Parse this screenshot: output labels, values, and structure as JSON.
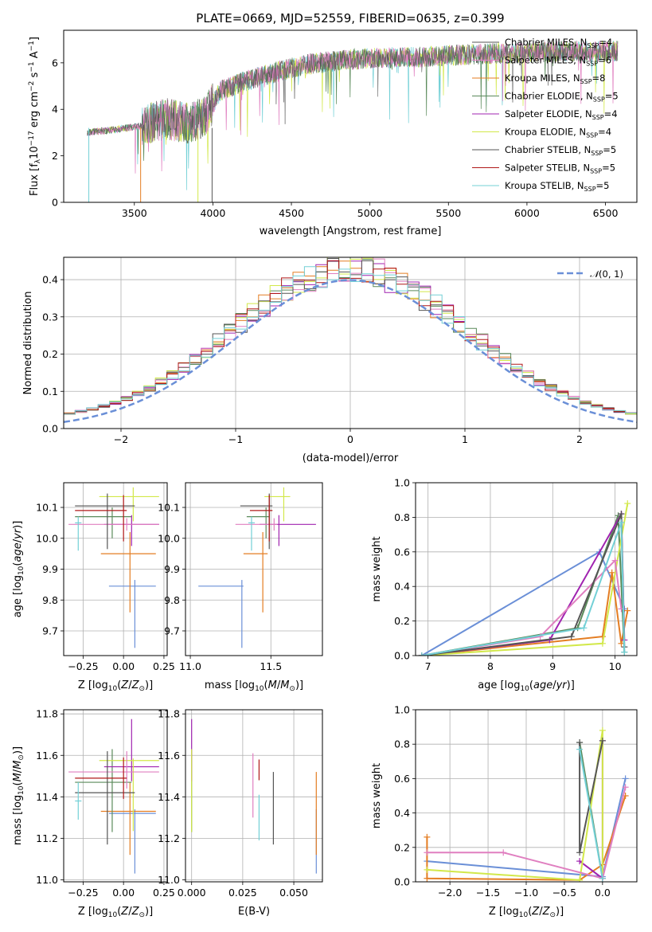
{
  "title": "PLATE=0669, MJD=52559, FIBERID=0635, z=0.399",
  "colors": [
    "#6a8fd7",
    "#e47d22",
    "#5a8a5a",
    "#a023b0",
    "#d2e84a",
    "#e07fc0",
    "#555555",
    "#b01818",
    "#73d0d6"
  ],
  "legend_models": [
    {
      "label": "Chabrier MILES, N",
      "sub": "SSP",
      "val": "=4",
      "color": "#555555"
    },
    {
      "label": "Salpeter MILES, N",
      "sub": "SSP",
      "val": "=6",
      "color": "#e07fc0"
    },
    {
      "label": "Kroupa MILES, N",
      "sub": "SSP",
      "val": "=8",
      "color": "#e47d22"
    },
    {
      "label": "Chabrier ELODIE, N",
      "sub": "SSP",
      "val": "=5",
      "color": "#5a8a5a"
    },
    {
      "label": "Salpeter ELODIE, N",
      "sub": "SSP",
      "val": "=4",
      "color": "#a023b0"
    },
    {
      "label": "Kroupa ELODIE, N",
      "sub": "SSP",
      "val": "=4",
      "color": "#d2e84a"
    },
    {
      "label": "Chabrier STELIB, N",
      "sub": "SSP",
      "val": "=5",
      "color": "#555555"
    },
    {
      "label": "Salpeter STELIB, N",
      "sub": "SSP",
      "val": "=5",
      "color": "#b01818"
    },
    {
      "label": "Kroupa STELIB, N",
      "sub": "SSP",
      "val": "=5",
      "color": "#73d0d6"
    }
  ],
  "chart_data": [
    {
      "panel": "spectrum",
      "type": "line",
      "xlabel": "wavelength [Angstrom, rest frame]",
      "ylabel_main": "Flux [f",
      "ylabel_sub": "λ",
      "ylabel_rest": "10",
      "ylabel_exp1": "−17",
      "ylabel_unit": " erg cm",
      "ylabel_exp2": "−2",
      "ylabel_s": " s",
      "ylabel_exp3": "−1",
      "ylabel_A": " A",
      "ylabel_exp4": "−1",
      "ylabel_close": "]",
      "xlim": [
        3050,
        6700
      ],
      "ylim": [
        0,
        7.4
      ],
      "xticks": [
        3500,
        4000,
        4500,
        5000,
        5500,
        6000,
        6500
      ],
      "yticks": [
        0,
        2,
        4,
        6
      ],
      "grid": false,
      "legend_position": "top-right",
      "approx_continuum": [
        {
          "x": 3200,
          "y": 3.0
        },
        {
          "x": 3400,
          "y": 3.15
        },
        {
          "x": 3550,
          "y": 3.3
        },
        {
          "x": 3700,
          "y": 3.6
        },
        {
          "x": 3850,
          "y": 3.4
        },
        {
          "x": 3950,
          "y": 3.7
        },
        {
          "x": 4050,
          "y": 4.8
        },
        {
          "x": 4200,
          "y": 5.2
        },
        {
          "x": 4400,
          "y": 5.6
        },
        {
          "x": 4600,
          "y": 5.95
        },
        {
          "x": 4800,
          "y": 6.1
        },
        {
          "x": 5000,
          "y": 6.2
        },
        {
          "x": 5300,
          "y": 6.25
        },
        {
          "x": 5600,
          "y": 6.35
        },
        {
          "x": 6000,
          "y": 6.45
        },
        {
          "x": 6300,
          "y": 6.5
        },
        {
          "x": 6580,
          "y": 6.5
        }
      ]
    },
    {
      "panel": "residuals",
      "type": "step-histogram",
      "xlabel": "(data-model)/error",
      "ylabel": "Normed distribution",
      "xlim": [
        -2.5,
        2.5
      ],
      "ylim": [
        0,
        0.46
      ],
      "xticks": [
        -2,
        -1,
        0,
        1,
        2
      ],
      "xticklabels": [
        "−2",
        "−1",
        "0",
        "1",
        "2"
      ],
      "yticks": [
        0.0,
        0.1,
        0.2,
        0.3,
        0.4
      ],
      "yticklabels": [
        "0.0",
        "0.1",
        "0.2",
        "0.3",
        "0.4"
      ],
      "grid": true,
      "bin_width": 0.1,
      "legend_label": "N(0,1)",
      "legend_position": "top-right",
      "reference_curve": {
        "type": "normal",
        "mean": 0,
        "sigma": 1,
        "color": "#6a8fd7"
      }
    },
    {
      "panel": "age_vs_Z",
      "type": "errorbar",
      "xlabel": "Z [log10(Z/Z⊙)]",
      "ylabel": "age [log10(age/yr)]",
      "xlim": [
        -0.37,
        0.27
      ],
      "ylim": [
        9.62,
        10.18
      ],
      "xticks": [
        -0.25,
        0.0,
        0.25
      ],
      "xticklabels": [
        "−0.25",
        "0.00",
        "0.25"
      ],
      "yticks": [
        9.7,
        9.8,
        9.9,
        10.0,
        10.1
      ],
      "yticklabels": [
        "9.7",
        "9.8",
        "9.9",
        "10.0",
        "10.1"
      ],
      "grid": true,
      "points": [
        {
          "x": 0.07,
          "y": 9.845,
          "xerr": [
            0.16,
            0.13
          ],
          "yerr": [
            0.2,
            0.02
          ],
          "color": "#6a8fd7"
        },
        {
          "x": 0.04,
          "y": 9.95,
          "xerr": [
            0.18,
            0.16
          ],
          "yerr": [
            0.19,
            0.07
          ],
          "color": "#e47d22"
        },
        {
          "x": -0.07,
          "y": 10.07,
          "xerr": [
            0.23,
            0.12
          ],
          "yerr": [
            0.07,
            0.03
          ],
          "color": "#5a8a5a"
        },
        {
          "x": 0.05,
          "y": 10.045,
          "xerr": [
            0.17,
            0.17
          ],
          "yerr": [
            0.07,
            0.03
          ],
          "color": "#a023b0"
        },
        {
          "x": 0.06,
          "y": 10.135,
          "xerr": [
            0.21,
            0.16
          ],
          "yerr": [
            0.08,
            0.03
          ],
          "color": "#d2e84a"
        },
        {
          "x": 0.02,
          "y": 10.045,
          "xerr": [
            0.36,
            0.2
          ],
          "yerr": [
            0.02,
            0.02
          ],
          "color": "#e07fc0"
        },
        {
          "x": -0.1,
          "y": 10.105,
          "xerr": [
            0.2,
            0.17
          ],
          "yerr": [
            0.14,
            0.04
          ],
          "color": "#555555"
        },
        {
          "x": 0.0,
          "y": 10.09,
          "xerr": [
            0.3,
            0.02
          ],
          "yerr": [
            0.1,
            0.05
          ],
          "color": "#b01818"
        },
        {
          "x": -0.28,
          "y": 10.05,
          "xerr": [
            0.02,
            0.02
          ],
          "yerr": [
            0.09,
            0.02
          ],
          "color": "#73d0d6"
        }
      ]
    },
    {
      "panel": "age_vs_mass",
      "type": "errorbar",
      "xlabel": "mass [log10(M/M⊙)]",
      "xlim": [
        10.97,
        11.82
      ],
      "ylim": [
        9.62,
        10.18
      ],
      "xticks": [
        11.0,
        11.5
      ],
      "xticklabels": [
        "11.0",
        "11.5"
      ],
      "yticks": [
        9.7,
        9.8,
        9.9,
        10.0,
        10.1
      ],
      "yticklabels": [
        "9.7",
        "9.8",
        "9.9",
        "10.0",
        "10.1"
      ],
      "grid": true,
      "points": [
        {
          "x": 11.32,
          "y": 9.845,
          "xerr": [
            0.27,
            0.01
          ],
          "yerr": [
            0.2,
            0.02
          ],
          "color": "#6a8fd7"
        },
        {
          "x": 11.45,
          "y": 9.95,
          "xerr": [
            0.12,
            0.03
          ],
          "yerr": [
            0.19,
            0.07
          ],
          "color": "#e47d22"
        },
        {
          "x": 11.47,
          "y": 10.07,
          "xerr": [
            0.12,
            0.02
          ],
          "yerr": [
            0.07,
            0.03
          ],
          "color": "#5a8a5a"
        },
        {
          "x": 11.55,
          "y": 10.045,
          "xerr": [
            0.12,
            0.23
          ],
          "yerr": [
            0.07,
            0.03
          ],
          "color": "#a023b0"
        },
        {
          "x": 11.58,
          "y": 10.135,
          "xerr": [
            0.12,
            0.04
          ],
          "yerr": [
            0.08,
            0.03
          ],
          "color": "#d2e84a"
        },
        {
          "x": 11.52,
          "y": 10.045,
          "xerr": [
            0.24,
            0.02
          ],
          "yerr": [
            0.02,
            0.02
          ],
          "color": "#e07fc0"
        },
        {
          "x": 11.49,
          "y": 10.105,
          "xerr": [
            0.18,
            0.02
          ],
          "yerr": [
            0.14,
            0.04
          ],
          "color": "#555555"
        },
        {
          "x": 11.49,
          "y": 10.09,
          "xerr": [
            0.12,
            0.02
          ],
          "yerr": [
            0.1,
            0.05
          ],
          "color": "#b01818"
        },
        {
          "x": 11.38,
          "y": 10.05,
          "xerr": [
            0.02,
            0.02
          ],
          "yerr": [
            0.09,
            0.02
          ],
          "color": "#73d0d6"
        }
      ]
    },
    {
      "panel": "massweight_vs_age",
      "type": "line",
      "xlabel": "age [log10(age/yr)]",
      "ylabel": "mass weight",
      "xlim": [
        6.8,
        10.35
      ],
      "ylim": [
        0,
        1.0
      ],
      "xticks": [
        7,
        8,
        9,
        10
      ],
      "yticks": [
        0.0,
        0.2,
        0.4,
        0.6,
        0.8,
        1.0
      ],
      "yticklabels": [
        "0.0",
        "0.2",
        "0.4",
        "0.6",
        "0.8",
        "1.0"
      ],
      "grid": true,
      "series": [
        {
          "color": "#6a8fd7",
          "x": [
            6.9,
            9.75,
            10.15
          ],
          "y": [
            0.0,
            0.6,
            0.27
          ]
        },
        {
          "color": "#e47d22",
          "x": [
            6.9,
            9.8,
            9.95,
            10.1,
            10.2
          ],
          "y": [
            0.0,
            0.11,
            0.48,
            0.07,
            0.26
          ]
        },
        {
          "color": "#5a8a5a",
          "x": [
            6.9,
            9.4,
            10.05,
            10.15
          ],
          "y": [
            0.0,
            0.16,
            0.81,
            0.02
          ]
        },
        {
          "color": "#a023b0",
          "x": [
            6.9,
            8.95,
            10.1,
            10.15
          ],
          "y": [
            0.0,
            0.09,
            0.82,
            0.09
          ]
        },
        {
          "color": "#d2e84a",
          "x": [
            6.9,
            9.8,
            10.2
          ],
          "y": [
            0.0,
            0.07,
            0.88
          ]
        },
        {
          "color": "#e07fc0",
          "x": [
            6.9,
            8.8,
            10.0,
            10.1
          ],
          "y": [
            0.0,
            0.11,
            0.55,
            0.27
          ]
        },
        {
          "color": "#555555",
          "x": [
            6.9,
            9.3,
            10.1,
            10.15
          ],
          "y": [
            0.0,
            0.11,
            0.82,
            0.05
          ]
        },
        {
          "color": "#73d0d6",
          "x": [
            6.9,
            9.5,
            10.1,
            10.15
          ],
          "y": [
            0.0,
            0.16,
            0.77,
            0.02
          ]
        }
      ]
    },
    {
      "panel": "mass_vs_Z",
      "type": "errorbar",
      "xlabel": "Z [log10(Z/Z⊙)]",
      "ylabel": "mass [log10(M/M⊙)]",
      "xlim": [
        -0.37,
        0.27
      ],
      "ylim": [
        10.99,
        11.82
      ],
      "xticks": [
        -0.25,
        0.0,
        0.25
      ],
      "xticklabels": [
        "−0.25",
        "0.00",
        "0.25"
      ],
      "yticks": [
        11.0,
        11.2,
        11.4,
        11.6,
        11.8
      ],
      "yticklabels": [
        "11.0",
        "11.2",
        "11.4",
        "11.6",
        "11.8"
      ],
      "grid": true,
      "points": [
        {
          "x": 0.07,
          "y": 11.32,
          "xerr": [
            0.16,
            0.13
          ],
          "yerr": [
            0.29,
            0.02
          ],
          "color": "#6a8fd7"
        },
        {
          "x": 0.04,
          "y": 11.33,
          "xerr": [
            0.18,
            0.16
          ],
          "yerr": [
            0.21,
            0.14
          ],
          "color": "#e47d22"
        },
        {
          "x": -0.07,
          "y": 11.47,
          "xerr": [
            0.23,
            0.12
          ],
          "yerr": [
            0.24,
            0.16
          ],
          "color": "#5a8a5a"
        },
        {
          "x": 0.05,
          "y": 11.545,
          "xerr": [
            0.17,
            0.17
          ],
          "yerr": [
            0.07,
            0.23
          ],
          "color": "#a023b0"
        },
        {
          "x": 0.06,
          "y": 11.575,
          "xerr": [
            0.21,
            0.16
          ],
          "yerr": [
            0.34,
            0.01
          ],
          "color": "#d2e84a"
        },
        {
          "x": 0.02,
          "y": 11.52,
          "xerr": [
            0.36,
            0.2
          ],
          "yerr": [
            0.08,
            0.1
          ],
          "color": "#e07fc0"
        },
        {
          "x": -0.1,
          "y": 11.42,
          "xerr": [
            0.2,
            0.17
          ],
          "yerr": [
            0.25,
            0.2
          ],
          "color": "#555555"
        },
        {
          "x": 0.0,
          "y": 11.49,
          "xerr": [
            0.3,
            0.02
          ],
          "yerr": [
            0.1,
            0.1
          ],
          "color": "#b01818"
        },
        {
          "x": -0.28,
          "y": 11.38,
          "xerr": [
            0.02,
            0.02
          ],
          "yerr": [
            0.09,
            0.09
          ],
          "color": "#73d0d6"
        }
      ]
    },
    {
      "panel": "mass_vs_ebv",
      "type": "errorbar",
      "xlabel": "E(B-V)",
      "xlim": [
        -0.003,
        0.064
      ],
      "ylim": [
        10.99,
        11.82
      ],
      "xticks": [
        0.0,
        0.025,
        0.05
      ],
      "xticklabels": [
        "0.000",
        "0.025",
        "0.050"
      ],
      "yticks": [
        11.0,
        11.2,
        11.4,
        11.6,
        11.8
      ],
      "yticklabels": [
        "11.0",
        "11.2",
        "11.4",
        "11.6",
        "11.8"
      ],
      "grid": true,
      "points": [
        {
          "x": 0.061,
          "y": 11.32,
          "xerr": [
            0,
            0
          ],
          "yerr": [
            0.29,
            0.02
          ],
          "color": "#6a8fd7"
        },
        {
          "x": 0.061,
          "y": 11.33,
          "xerr": [
            0,
            0
          ],
          "yerr": [
            0.21,
            0.19
          ],
          "color": "#e47d22"
        },
        {
          "x": 0.0,
          "y": 11.47,
          "xerr": [
            0,
            0
          ],
          "yerr": [
            0.24,
            0.16
          ],
          "color": "#5a8a5a"
        },
        {
          "x": 0.0,
          "y": 11.545,
          "xerr": [
            0,
            0
          ],
          "yerr": [
            0.07,
            0.23
          ],
          "color": "#a023b0"
        },
        {
          "x": 0.0,
          "y": 11.43,
          "xerr": [
            0,
            0
          ],
          "yerr": [
            0.2,
            0.2
          ],
          "color": "#d2e84a"
        },
        {
          "x": 0.03,
          "y": 11.45,
          "xerr": [
            0,
            0
          ],
          "yerr": [
            0.15,
            0.16
          ],
          "color": "#e07fc0"
        },
        {
          "x": 0.04,
          "y": 11.42,
          "xerr": [
            0,
            0
          ],
          "yerr": [
            0.25,
            0.1
          ],
          "color": "#555555"
        },
        {
          "x": 0.033,
          "y": 11.53,
          "xerr": [
            0,
            0
          ],
          "yerr": [
            0.05,
            0.05
          ],
          "color": "#b01818"
        },
        {
          "x": 0.033,
          "y": 11.3,
          "xerr": [
            0,
            0
          ],
          "yerr": [
            0.11,
            0.11
          ],
          "color": "#73d0d6"
        }
      ]
    },
    {
      "panel": "massweight_vs_Z",
      "type": "line",
      "xlabel": "Z [log10(Z/Z⊙)]",
      "ylabel": "mass weight",
      "xlim": [
        -2.45,
        0.45
      ],
      "ylim": [
        0,
        1.0
      ],
      "xticks": [
        -2.0,
        -1.5,
        -1.0,
        -0.5,
        0.0
      ],
      "xticklabels": [
        "−2.0",
        "−1.5",
        "−1.0",
        "−0.5",
        "0.0"
      ],
      "yticks": [
        0.0,
        0.2,
        0.4,
        0.6,
        0.8,
        1.0
      ],
      "yticklabels": [
        "0.0",
        "0.2",
        "0.4",
        "0.6",
        "0.8",
        "1.0"
      ],
      "grid": true,
      "series": [
        {
          "color": "#6a8fd7",
          "x": [
            -2.3,
            0.0,
            0.3
          ],
          "y": [
            0.12,
            0.03,
            0.6
          ]
        },
        {
          "color": "#e47d22",
          "x": [
            -2.3,
            -2.3,
            -0.3,
            0.0,
            0.3
          ],
          "y": [
            0.26,
            0.02,
            0.01,
            0.1,
            0.5
          ]
        },
        {
          "color": "#5a8a5a",
          "x": [
            -0.3,
            0.0
          ],
          "y": [
            0.81,
            0.02
          ]
        },
        {
          "color": "#a023b0",
          "x": [
            -0.3,
            0.0,
            0.0
          ],
          "y": [
            0.12,
            0.02,
            0.82
          ]
        },
        {
          "color": "#d2e84a",
          "x": [
            -2.3,
            -0.3,
            0.0,
            0.0
          ],
          "y": [
            0.07,
            0.01,
            0.88,
            0.02
          ]
        },
        {
          "color": "#e07fc0",
          "x": [
            -2.3,
            -1.3,
            0.0,
            0.3
          ],
          "y": [
            0.17,
            0.17,
            0.02,
            0.55
          ]
        },
        {
          "color": "#555555",
          "x": [
            -0.3,
            -0.3,
            0.0
          ],
          "y": [
            0.81,
            0.17,
            0.82
          ]
        },
        {
          "color": "#73d0d6",
          "x": [
            -0.3,
            0.0
          ],
          "y": [
            0.77,
            0.02
          ]
        }
      ]
    }
  ]
}
